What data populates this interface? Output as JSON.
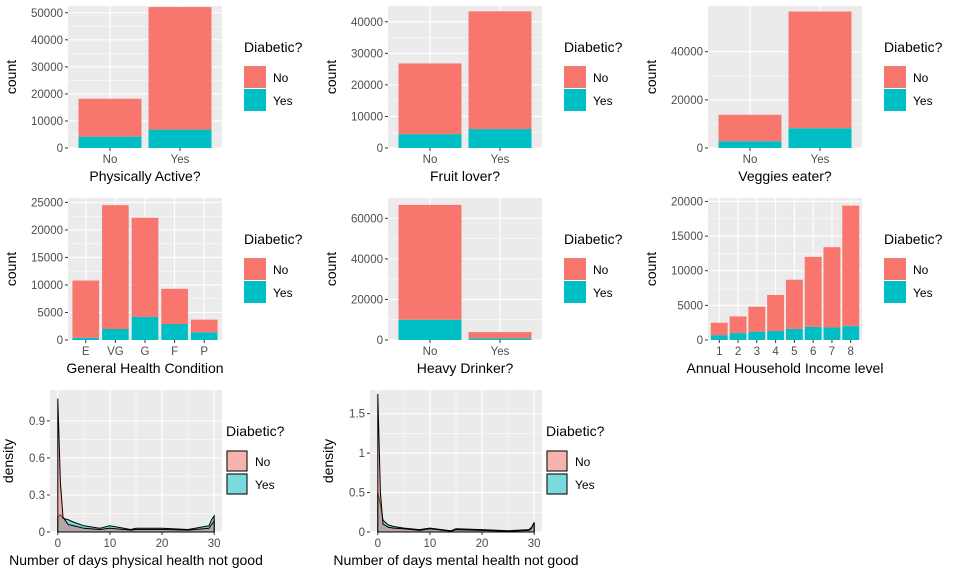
{
  "legend": {
    "title": "Diabetic?",
    "entries": [
      "No",
      "Yes"
    ],
    "colors": {
      "No": "#F8766D",
      "Yes": "#00BFC4"
    }
  },
  "chart_data": [
    {
      "type": "bar",
      "stacked": true,
      "xlabel": "Physically Active?",
      "ylabel": "count",
      "categories": [
        "No",
        "Yes"
      ],
      "ylim": [
        0,
        52500
      ],
      "yticks": [
        0,
        10000,
        20000,
        30000,
        40000,
        50000
      ],
      "series": [
        {
          "name": "No",
          "values": [
            14000,
            45300
          ]
        },
        {
          "name": "Yes",
          "values": [
            4200,
            6800
          ]
        }
      ]
    },
    {
      "type": "bar",
      "stacked": true,
      "xlabel": "Fruit lover?",
      "ylabel": "count",
      "categories": [
        "No",
        "Yes"
      ],
      "ylim": [
        0,
        45000
      ],
      "yticks": [
        0,
        10000,
        20000,
        30000,
        40000
      ],
      "series": [
        {
          "name": "No",
          "values": [
            22400,
            37300
          ]
        },
        {
          "name": "Yes",
          "values": [
            4400,
            6000
          ]
        }
      ]
    },
    {
      "type": "bar",
      "stacked": true,
      "xlabel": "Veggies eater?",
      "ylabel": "count",
      "categories": [
        "No",
        "Yes"
      ],
      "ylim": [
        0,
        59000
      ],
      "yticks": [
        0,
        20000,
        40000
      ],
      "series": [
        {
          "name": "No",
          "values": [
            11000,
            48500
          ]
        },
        {
          "name": "Yes",
          "values": [
            2800,
            8200
          ]
        }
      ]
    },
    {
      "type": "bar",
      "stacked": true,
      "xlabel": "General Health Condition",
      "ylabel": "count",
      "categories": [
        "E",
        "VG",
        "G",
        "F",
        "P"
      ],
      "ylim": [
        0,
        25800
      ],
      "yticks": [
        0,
        5000,
        10000,
        15000,
        20000,
        25000
      ],
      "series": [
        {
          "name": "No",
          "values": [
            10400,
            22500,
            18000,
            6400,
            2300
          ]
        },
        {
          "name": "Yes",
          "values": [
            400,
            2000,
            4200,
            2900,
            1400
          ]
        }
      ]
    },
    {
      "type": "bar",
      "stacked": true,
      "xlabel": "Heavy Drinker?",
      "ylabel": "count",
      "categories": [
        "No",
        "Yes"
      ],
      "ylim": [
        0,
        70000
      ],
      "yticks": [
        0,
        20000,
        40000,
        60000
      ],
      "series": [
        {
          "name": "No",
          "values": [
            56600,
            3100
          ]
        },
        {
          "name": "Yes",
          "values": [
            10000,
            800
          ]
        }
      ]
    },
    {
      "type": "bar",
      "stacked": true,
      "xlabel": "Annual Household Income level",
      "ylabel": "count",
      "categories": [
        "1",
        "2",
        "3",
        "4",
        "5",
        "6",
        "7",
        "8"
      ],
      "ylim": [
        0,
        20500
      ],
      "yticks": [
        0,
        5000,
        10000,
        15000,
        20000
      ],
      "series": [
        {
          "name": "No",
          "values": [
            1800,
            2400,
            3600,
            5200,
            7100,
            10100,
            11600,
            17400
          ]
        },
        {
          "name": "Yes",
          "values": [
            700,
            1000,
            1200,
            1300,
            1600,
            1900,
            1800,
            2000
          ]
        }
      ]
    },
    {
      "type": "area",
      "xlabel": "Number of days physical health not good",
      "ylabel": "density",
      "xlim": [
        -1.5,
        31.5
      ],
      "ylim": [
        0,
        1.15
      ],
      "xticks": [
        0,
        10,
        20,
        30
      ],
      "yticks": [
        0.0,
        0.3,
        0.6,
        0.9
      ],
      "series": [
        {
          "name": "No",
          "x": [
            0,
            0.5,
            1,
            2,
            3,
            5,
            8,
            10,
            14,
            15,
            20,
            25,
            29,
            29.5,
            30
          ],
          "y": [
            1.08,
            0.4,
            0.12,
            0.06,
            0.05,
            0.03,
            0.02,
            0.03,
            0.015,
            0.02,
            0.02,
            0.015,
            0.03,
            0.06,
            0.09
          ]
        },
        {
          "name": "Yes",
          "x": [
            0,
            0.5,
            1,
            2,
            3,
            5,
            8,
            10,
            14,
            15,
            20,
            25,
            29,
            29.5,
            30
          ],
          "y": [
            0.12,
            0.14,
            0.11,
            0.1,
            0.08,
            0.05,
            0.03,
            0.05,
            0.02,
            0.03,
            0.03,
            0.02,
            0.05,
            0.1,
            0.13
          ]
        }
      ]
    },
    {
      "type": "area",
      "xlabel": "Number of days mental health not good",
      "ylabel": "density",
      "xlim": [
        -1.5,
        31.5
      ],
      "ylim": [
        0,
        1.8
      ],
      "xticks": [
        0,
        10,
        20,
        30
      ],
      "yticks": [
        0.0,
        0.5,
        1.0,
        1.5
      ],
      "series": [
        {
          "name": "No",
          "x": [
            0,
            0.5,
            1,
            2,
            3,
            5,
            8,
            10,
            14,
            15,
            20,
            25,
            29,
            29.5,
            30
          ],
          "y": [
            1.75,
            0.5,
            0.1,
            0.06,
            0.05,
            0.04,
            0.02,
            0.04,
            0.01,
            0.03,
            0.02,
            0.01,
            0.02,
            0.05,
            0.12
          ]
        },
        {
          "name": "Yes",
          "x": [
            0,
            0.5,
            1,
            2,
            3,
            5,
            8,
            10,
            14,
            15,
            20,
            25,
            29,
            29.5,
            30
          ],
          "y": [
            0.5,
            0.35,
            0.15,
            0.09,
            0.07,
            0.05,
            0.03,
            0.05,
            0.015,
            0.04,
            0.03,
            0.015,
            0.03,
            0.06,
            0.12
          ]
        }
      ]
    }
  ]
}
